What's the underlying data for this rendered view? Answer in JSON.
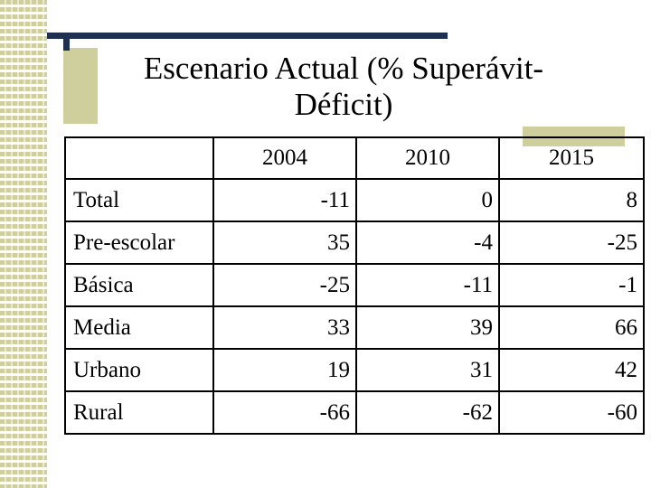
{
  "slide": {
    "title": "Escenario Actual (% Superávit- Déficit)"
  },
  "table": {
    "headers": [
      "",
      "2004",
      "2010",
      "2015"
    ],
    "rows": [
      {
        "label": "Total",
        "values": [
          "-11",
          "0",
          "8"
        ]
      },
      {
        "label": "Pre-escolar",
        "values": [
          "35",
          "-4",
          "-25"
        ]
      },
      {
        "label": "Básica",
        "values": [
          "-25",
          "-11",
          "-1"
        ]
      },
      {
        "label": "Media",
        "values": [
          "33",
          "39",
          "66"
        ]
      },
      {
        "label": "Urbano",
        "values": [
          "19",
          "31",
          "42"
        ]
      },
      {
        "label": "Rural",
        "values": [
          "-66",
          "-62",
          "-60"
        ]
      }
    ]
  },
  "colors": {
    "accent_bar": "#1f2f4f",
    "pattern": "#cfcf9e"
  }
}
